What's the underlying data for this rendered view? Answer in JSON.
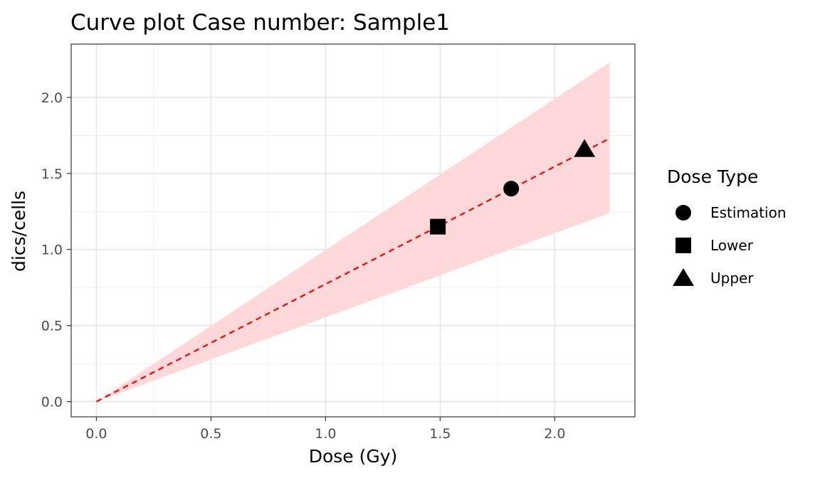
{
  "chart_data": {
    "type": "line",
    "title": "Curve plot Case number:  Sample1",
    "xlabel": "Dose (Gy)",
    "ylabel": "dics/cells",
    "xlim": [
      -0.11,
      2.35
    ],
    "ylim": [
      -0.1,
      2.35
    ],
    "x_ticks": [
      0.0,
      0.5,
      1.0,
      1.5,
      2.0
    ],
    "x_tick_labels": [
      "0.0",
      "0.5",
      "1.0",
      "1.5",
      "2.0"
    ],
    "y_ticks": [
      0.0,
      0.5,
      1.0,
      1.5,
      2.0
    ],
    "y_tick_labels": [
      "0.0",
      "0.5",
      "1.0",
      "1.5",
      "2.0"
    ],
    "grid": true,
    "curve": {
      "x": [
        0.0,
        2.24
      ],
      "y": [
        0.0,
        1.73
      ],
      "color": "#ff0000",
      "style": "dashed"
    },
    "band": {
      "x": [
        0.0,
        2.24
      ],
      "lower": [
        0.0,
        1.24
      ],
      "upper": [
        0.0,
        2.23
      ],
      "color": "#ffd9d9"
    },
    "points": [
      {
        "label": "Estimation",
        "shape": "circle",
        "x": 1.81,
        "y": 1.4
      },
      {
        "label": "Lower",
        "shape": "square",
        "x": 1.49,
        "y": 1.15
      },
      {
        "label": "Upper",
        "shape": "triangle",
        "x": 2.13,
        "y": 1.66
      }
    ],
    "legend": {
      "title": "Dose Type",
      "position": "right",
      "entries": [
        {
          "label": "Estimation",
          "shape": "circle"
        },
        {
          "label": "Lower",
          "shape": "square"
        },
        {
          "label": "Upper",
          "shape": "triangle"
        }
      ]
    }
  }
}
